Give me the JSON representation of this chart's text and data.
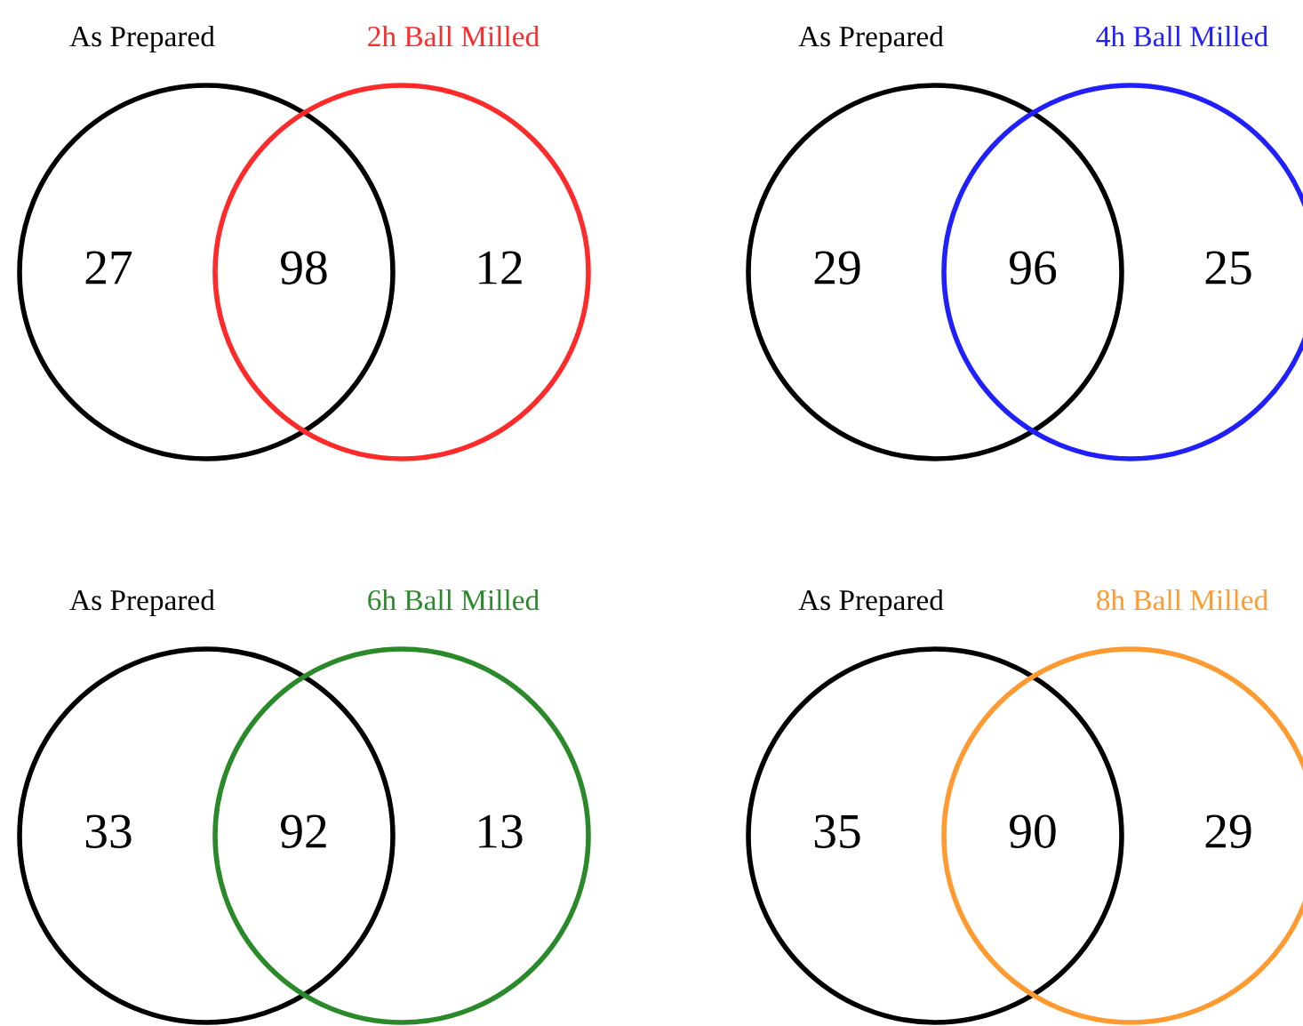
{
  "chart_data": [
    {
      "type": "other",
      "annotations": [
        "As Prepared",
        "2h Ball Milled"
      ],
      "categories": [
        null,
        null,
        null
      ],
      "values": [
        27,
        98,
        12
      ],
      "data_labels": true,
      "colors": [
        "#000000",
        "#000000",
        "#ff2a2a"
      ]
    },
    {
      "type": "other",
      "annotations": [
        "As Prepared",
        "4h Ball Milled"
      ],
      "categories": [
        null,
        null,
        null
      ],
      "values": [
        29,
        96,
        25
      ],
      "data_labels": true,
      "colors": [
        "#000000",
        "#000000",
        "#2020ff"
      ]
    },
    {
      "type": "other",
      "annotations": [
        "As Prepared",
        "6h Ball Milled"
      ],
      "categories": [
        null,
        null,
        null
      ],
      "values": [
        33,
        92,
        13
      ],
      "data_labels": true,
      "colors": [
        "#000000",
        "#000000",
        "#2a8a2a"
      ]
    },
    {
      "type": "other",
      "annotations": [
        "As Prepared",
        "8h Ball Milled"
      ],
      "categories": [
        null,
        null,
        null
      ],
      "values": [
        35,
        90,
        29
      ],
      "data_labels": true,
      "colors": [
        "#000000",
        "#000000",
        "#ff9a30"
      ]
    }
  ]
}
